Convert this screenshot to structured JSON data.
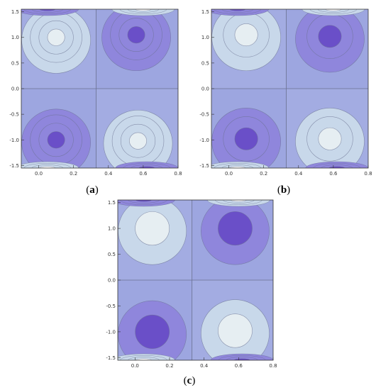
{
  "figure": {
    "panels": [
      {
        "id": "a",
        "label_open": "(",
        "label_letter": "a",
        "label_close": ")"
      },
      {
        "id": "b",
        "label_open": "(",
        "label_letter": "b",
        "label_close": ")"
      },
      {
        "id": "c",
        "label_open": "(",
        "label_letter": "c",
        "label_close": ")"
      }
    ]
  },
  "colors": {
    "deep": "#6a4fc8",
    "mid": "#8f86dc",
    "base": "#a3ace2",
    "light": "#c8d8ea",
    "pale": "#e6eef2",
    "contour": "#6a7190"
  },
  "chart_data": [
    {
      "type": "contour",
      "panel": "a",
      "xlim": [
        -0.1,
        0.8
      ],
      "ylim": [
        -1.55,
        1.55
      ],
      "xticks": [
        "0.0",
        "0.2",
        "0.4",
        "0.6",
        "0.8"
      ],
      "yticks": [
        "1.5",
        "1.0",
        "0.5",
        "0.0",
        "-0.5",
        "-1.0",
        "-1.5"
      ],
      "divider_x": 0.33,
      "divider_y": 0.0,
      "extrema": [
        {
          "x": 0.1,
          "y": 1.0,
          "kind": "max"
        },
        {
          "x": 0.56,
          "y": 1.05,
          "kind": "min"
        },
        {
          "x": 0.1,
          "y": -1.0,
          "kind": "min"
        },
        {
          "x": 0.57,
          "y": -1.02,
          "kind": "max"
        }
      ],
      "levels": 4
    },
    {
      "type": "contour",
      "panel": "b",
      "xlim": [
        -0.1,
        0.8
      ],
      "ylim": [
        -1.55,
        1.55
      ],
      "xticks": [
        "0.0",
        "0.2",
        "0.4",
        "0.6",
        "0.8"
      ],
      "yticks": [
        "1.5",
        "1.0",
        "0.5",
        "0.0",
        "-0.5",
        "-1.0",
        "-1.5"
      ],
      "divider_x": 0.33,
      "divider_y": 0.0,
      "extrema": [
        {
          "x": 0.1,
          "y": 1.05,
          "kind": "max"
        },
        {
          "x": 0.58,
          "y": 1.02,
          "kind": "min"
        },
        {
          "x": 0.1,
          "y": -0.98,
          "kind": "min"
        },
        {
          "x": 0.58,
          "y": -0.98,
          "kind": "max"
        }
      ],
      "levels": 3
    },
    {
      "type": "contour",
      "panel": "c",
      "xlim": [
        -0.1,
        0.8
      ],
      "ylim": [
        -1.55,
        1.55
      ],
      "xticks": [
        "0.0",
        "0.2",
        "0.4",
        "0.6",
        "0.8"
      ],
      "yticks": [
        "1.5",
        "1.0",
        "0.5",
        "0.0",
        "-0.5",
        "-1.0",
        "-1.5"
      ],
      "divider_x": 0.33,
      "divider_y": 0.0,
      "extrema": [
        {
          "x": 0.1,
          "y": 1.0,
          "kind": "max"
        },
        {
          "x": 0.58,
          "y": 1.0,
          "kind": "min"
        },
        {
          "x": 0.1,
          "y": -1.0,
          "kind": "min"
        },
        {
          "x": 0.58,
          "y": -0.98,
          "kind": "max"
        }
      ],
      "levels": 2
    }
  ]
}
